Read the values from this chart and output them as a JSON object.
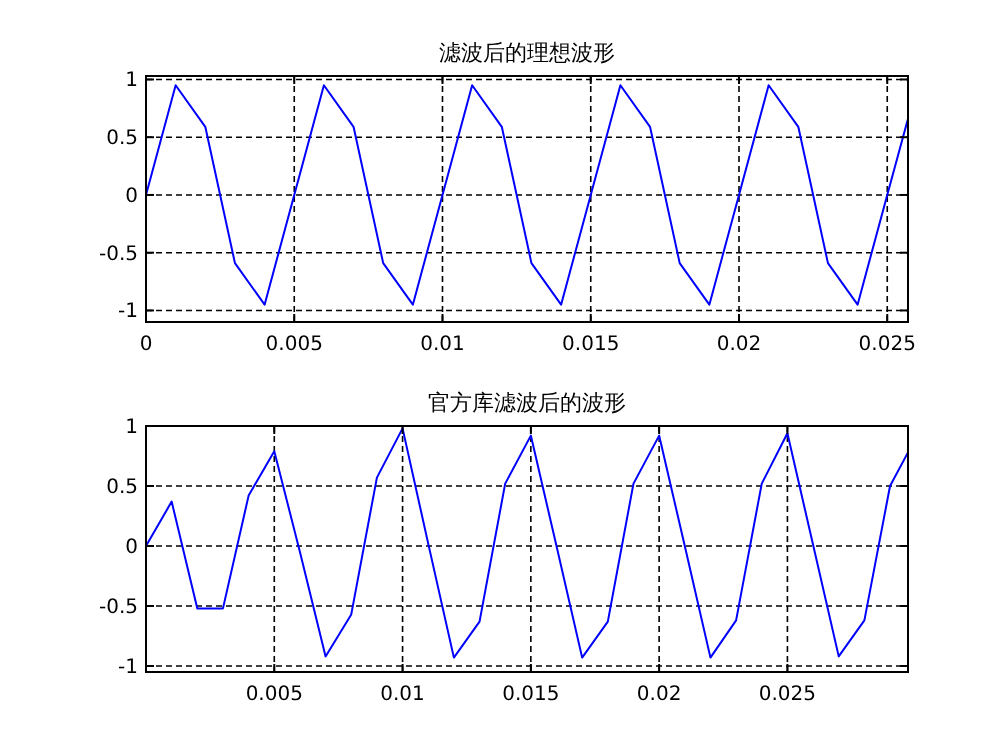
{
  "chart_data": [
    {
      "type": "line",
      "title": "滤波后的理想波形",
      "x": [
        0,
        0.001,
        0.002,
        0.003,
        0.004,
        0.005,
        0.006,
        0.007,
        0.008,
        0.009,
        0.01,
        0.011,
        0.012,
        0.013,
        0.014,
        0.015,
        0.016,
        0.017,
        0.018,
        0.019,
        0.02,
        0.021,
        0.022,
        0.023,
        0.024,
        0.025,
        0.0257
      ],
      "series": [
        {
          "color": "#0000ff",
          "values": [
            0,
            0.95,
            0.59,
            -0.59,
            -0.95,
            0,
            0.95,
            0.59,
            -0.59,
            -0.95,
            0,
            0.95,
            0.59,
            -0.59,
            -0.95,
            0,
            0.95,
            0.59,
            -0.59,
            -0.95,
            0,
            0.95,
            0.59,
            -0.59,
            -0.95,
            0,
            0.66
          ]
        }
      ],
      "xlim": [
        0,
        0.0257
      ],
      "xticks": [
        0,
        0.005,
        0.01,
        0.015,
        0.02,
        0.025
      ],
      "ylim": [
        -1.1,
        1.03
      ],
      "yticks": [
        -1,
        -0.5,
        0,
        0.5,
        1
      ],
      "grid": true
    },
    {
      "type": "line",
      "title": "官方库滤波后的波形",
      "x": [
        0,
        0.001,
        0.002,
        0.003,
        0.004,
        0.005,
        0.006,
        0.007,
        0.008,
        0.009,
        0.01,
        0.011,
        0.012,
        0.013,
        0.014,
        0.015,
        0.016,
        0.017,
        0.018,
        0.019,
        0.02,
        0.021,
        0.022,
        0.023,
        0.024,
        0.025,
        0.026,
        0.027,
        0.028,
        0.029,
        0.0297
      ],
      "series": [
        {
          "color": "#0000ff",
          "values": [
            0,
            0.37,
            -0.52,
            -0.52,
            0.42,
            0.79,
            -0.05,
            -0.92,
            -0.57,
            0.57,
            0.98,
            0.02,
            -0.93,
            -0.63,
            0.52,
            0.92,
            0,
            -0.93,
            -0.63,
            0.52,
            0.92,
            0,
            -0.93,
            -0.62,
            0.52,
            0.94,
            0.01,
            -0.92,
            -0.62,
            0.5,
            0.78
          ]
        }
      ],
      "xlim": [
        0,
        0.0297
      ],
      "xticks": [
        0.005,
        0.01,
        0.015,
        0.02,
        0.025
      ],
      "ylim": [
        -1.05,
        1
      ],
      "yticks": [
        -1,
        -0.5,
        0,
        0.5,
        1
      ],
      "grid": true
    }
  ]
}
